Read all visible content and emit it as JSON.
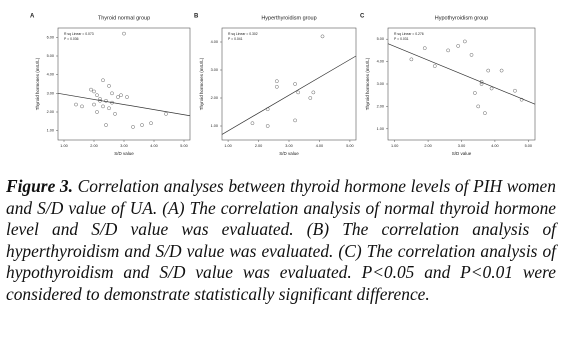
{
  "chart_data": [
    {
      "type": "scatter",
      "panel": "A",
      "title": "Thyroid normal group",
      "x_label": "S/D value",
      "y_label": "Thyroid hormones (mIU/L)",
      "annotations": [
        "R sq Linear = 0.073",
        "P = 0.036"
      ],
      "xlim": [
        0.8,
        5.2
      ],
      "ylim": [
        0.5,
        6.5
      ],
      "xticks": [
        {
          "value": 1,
          "label": "1.00"
        },
        {
          "value": 2,
          "label": "2.00"
        },
        {
          "value": 3,
          "label": "3.00"
        },
        {
          "value": 4,
          "label": "4.00"
        },
        {
          "value": 5,
          "label": "5.00"
        }
      ],
      "yticks": [
        {
          "value": 1,
          "label": "1.00"
        },
        {
          "value": 2,
          "label": "2.00"
        },
        {
          "value": 3,
          "label": "3.00"
        },
        {
          "value": 4,
          "label": "4.00"
        },
        {
          "value": 5,
          "label": "5.00"
        },
        {
          "value": 6,
          "label": "6.00"
        }
      ],
      "x": [
        2.3,
        2.0,
        2.1,
        2.5,
        2.2,
        2.6,
        2.4,
        1.9,
        2.8,
        2.3,
        2.1,
        2.7,
        3.0,
        2.5,
        2.2,
        1.6,
        1.4,
        2.9,
        3.3,
        3.6,
        3.9,
        4.4,
        2.4,
        2.6,
        3.1,
        2.0
      ],
      "y": [
        3.7,
        3.1,
        2.9,
        3.4,
        2.7,
        2.5,
        2.6,
        3.2,
        2.8,
        2.3,
        2.0,
        1.9,
        6.2,
        2.2,
        2.6,
        2.3,
        2.4,
        2.9,
        1.2,
        1.3,
        1.4,
        1.9,
        1.3,
        3.0,
        2.8,
        2.4
      ],
      "fit": {
        "x": [
          0.8,
          5.2
        ],
        "y": [
          3.0,
          1.8
        ]
      },
      "point_color": "#666666",
      "line_color": "#333333"
    },
    {
      "type": "scatter",
      "panel": "B",
      "title": "Hyperthyroidism group",
      "x_label": "S/D value",
      "y_label": "Thyroid hormones (mIU/L)",
      "annotations": [
        "R sq Linear = 0.302",
        "P = 0.041"
      ],
      "xlim": [
        0.8,
        5.2
      ],
      "ylim": [
        0.5,
        4.5
      ],
      "xticks": [
        {
          "value": 1,
          "label": "1.00"
        },
        {
          "value": 2,
          "label": "2.00"
        },
        {
          "value": 3,
          "label": "3.00"
        },
        {
          "value": 4,
          "label": "4.00"
        },
        {
          "value": 5,
          "label": "5.00"
        }
      ],
      "yticks": [
        {
          "value": 1,
          "label": "1.00"
        },
        {
          "value": 2,
          "label": "2.00"
        },
        {
          "value": 3,
          "label": "3.00"
        },
        {
          "value": 4,
          "label": "4.00"
        }
      ],
      "x": [
        1.8,
        2.3,
        2.6,
        2.3,
        3.2,
        3.7,
        3.3,
        3.8,
        4.1,
        3.2,
        2.6
      ],
      "y": [
        1.1,
        1.6,
        2.6,
        1.0,
        2.5,
        2.0,
        2.2,
        2.2,
        4.2,
        1.2,
        2.4
      ],
      "fit": {
        "x": [
          0.8,
          5.2
        ],
        "y": [
          0.7,
          3.5
        ]
      },
      "point_color": "#666666",
      "line_color": "#333333"
    },
    {
      "type": "scatter",
      "panel": "C",
      "title": "Hypothyroidism group",
      "x_label": "S/D value",
      "y_label": "Thyroid hormones (mIU/L)",
      "annotations": [
        "R sq Linear = 0.276",
        "P = 0.031"
      ],
      "xlim": [
        0.8,
        5.2
      ],
      "ylim": [
        0.5,
        5.5
      ],
      "xticks": [
        {
          "value": 1,
          "label": "1.00"
        },
        {
          "value": 2,
          "label": "2.00"
        },
        {
          "value": 3,
          "label": "3.00"
        },
        {
          "value": 4,
          "label": "4.00"
        },
        {
          "value": 5,
          "label": "5.00"
        }
      ],
      "yticks": [
        {
          "value": 1,
          "label": "1.00"
        },
        {
          "value": 2,
          "label": "2.00"
        },
        {
          "value": 3,
          "label": "3.00"
        },
        {
          "value": 4,
          "label": "4.00"
        },
        {
          "value": 5,
          "label": "5.00"
        }
      ],
      "x": [
        1.5,
        1.9,
        2.2,
        2.6,
        2.9,
        3.1,
        3.3,
        3.6,
        3.8,
        3.5,
        3.7,
        3.9,
        4.2,
        4.6,
        4.8,
        3.4,
        3.6
      ],
      "y": [
        4.1,
        4.6,
        3.8,
        4.5,
        4.7,
        4.9,
        4.3,
        3.1,
        3.6,
        2.0,
        1.7,
        2.8,
        3.6,
        2.7,
        2.3,
        2.6,
        3.0
      ],
      "fit": {
        "x": [
          0.8,
          5.2
        ],
        "y": [
          4.8,
          2.1
        ]
      },
      "point_color": "#666666",
      "line_color": "#333333"
    }
  ],
  "caption": {
    "label": "Figure 3.",
    "text": "Correlation analyses between thyroid hormone levels of PIH women and S/D value of UA. (A) The correlation analysis of normal thyroid hormone level and S/D value was evaluated. (B) The correlation analysis of hyperthyroidism and S/D value was evaluated. (C) The correlation analysis of hypothyroidism and S/D value was evaluated. P<0.05 and P<0.01 were considered to demonstrate statistically significant difference."
  }
}
